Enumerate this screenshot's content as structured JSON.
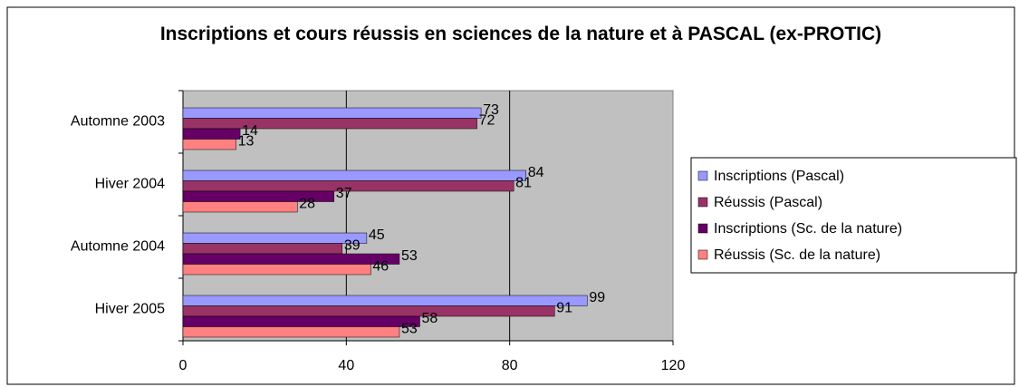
{
  "chart_data": {
    "type": "hbar",
    "title": "Inscriptions et cours réussis en sciences de la nature et à PASCAL (ex-PROTIC)",
    "categories": [
      "Automne 2003",
      "Hiver 2004",
      "Automne 2004",
      "Hiver 2005"
    ],
    "series": [
      {
        "name": "Inscriptions (Pascal)",
        "color": "#9999ff",
        "values": [
          73,
          84,
          45,
          99
        ]
      },
      {
        "name": "Réussis (Pascal)",
        "color": "#993366",
        "values": [
          72,
          81,
          39,
          91
        ]
      },
      {
        "name": "Inscriptions (Sc. de la nature)",
        "color": "#660066",
        "values": [
          14,
          37,
          53,
          58
        ]
      },
      {
        "name": "Réussis (Sc. de la nature)",
        "color": "#ff8080",
        "values": [
          13,
          28,
          46,
          53
        ]
      }
    ],
    "xlim": [
      0,
      120
    ],
    "xticks": [
      0,
      40,
      80,
      120
    ],
    "grid": true,
    "legend": "right"
  }
}
